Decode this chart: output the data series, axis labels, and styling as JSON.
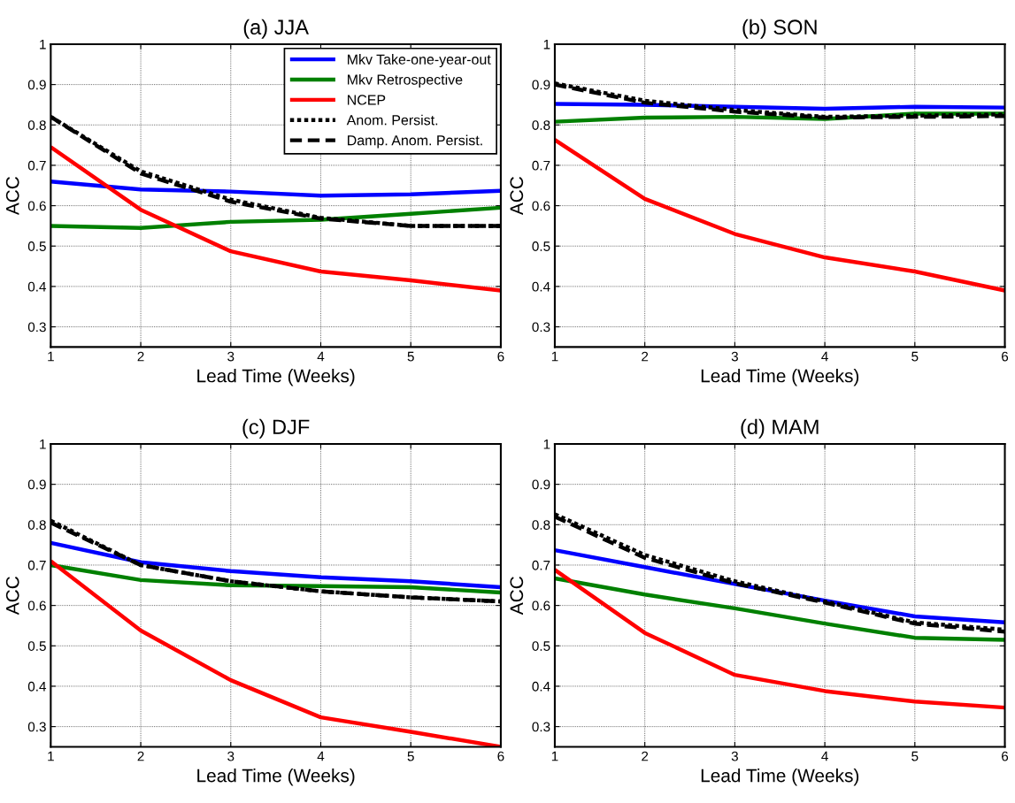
{
  "chart_data": [
    {
      "type": "line",
      "title": "(a) JJA",
      "xlabel": "Lead Time (Weeks)",
      "ylabel": "ACC",
      "x": [
        1,
        2,
        3,
        4,
        5,
        6
      ],
      "xlim": [
        1,
        6
      ],
      "xticks": [
        1,
        2,
        3,
        4,
        5,
        6
      ],
      "ylim": [
        0.25,
        1
      ],
      "yticks": [
        0.3,
        0.4,
        0.5,
        0.6,
        0.7,
        0.8,
        0.9,
        1
      ],
      "grid": true,
      "legend": "top right",
      "series": [
        {
          "name": "Mkv Take-one-year-out",
          "color": "#0000ff",
          "line_style": "solid",
          "values": [
            0.66,
            0.64,
            0.635,
            0.625,
            0.628,
            0.637
          ]
        },
        {
          "name": "Mkv Retrospective",
          "color": "#008000",
          "line_style": "solid",
          "values": [
            0.55,
            0.545,
            0.56,
            0.565,
            0.58,
            0.595
          ]
        },
        {
          "name": "NCEP",
          "color": "#ff0000",
          "line_style": "solid",
          "values": [
            0.745,
            0.59,
            0.487,
            0.437,
            0.415,
            0.39
          ]
        },
        {
          "name": "Anom. Persist.",
          "color": "#000000",
          "line_style": "dotted",
          "values": [
            0.82,
            0.685,
            0.615,
            0.57,
            0.55,
            0.55
          ]
        },
        {
          "name": "Damp. Anom. Persist.",
          "color": "#000000",
          "line_style": "dashed",
          "values": [
            0.82,
            0.68,
            0.61,
            0.568,
            0.55,
            0.55
          ]
        }
      ]
    },
    {
      "type": "line",
      "title": "(b) SON",
      "xlabel": "Lead Time (Weeks)",
      "ylabel": "ACC",
      "x": [
        1,
        2,
        3,
        4,
        5,
        6
      ],
      "xlim": [
        1,
        6
      ],
      "xticks": [
        1,
        2,
        3,
        4,
        5,
        6
      ],
      "ylim": [
        0.25,
        1
      ],
      "yticks": [
        0.3,
        0.4,
        0.5,
        0.6,
        0.7,
        0.8,
        0.9,
        1
      ],
      "grid": true,
      "series": [
        {
          "color": "#0000ff",
          "line_style": "solid",
          "values": [
            0.852,
            0.85,
            0.845,
            0.84,
            0.845,
            0.843
          ]
        },
        {
          "color": "#008000",
          "line_style": "solid",
          "values": [
            0.808,
            0.818,
            0.82,
            0.815,
            0.828,
            0.828
          ]
        },
        {
          "color": "#ff0000",
          "line_style": "solid",
          "values": [
            0.763,
            0.617,
            0.53,
            0.472,
            0.437,
            0.39
          ]
        },
        {
          "color": "#000000",
          "line_style": "dotted",
          "values": [
            0.903,
            0.86,
            0.837,
            0.82,
            0.823,
            0.826
          ]
        },
        {
          "color": "#000000",
          "line_style": "dashed",
          "values": [
            0.9,
            0.855,
            0.833,
            0.818,
            0.82,
            0.822
          ]
        }
      ]
    },
    {
      "type": "line",
      "title": "(c) DJF",
      "xlabel": "Lead Time (Weeks)",
      "ylabel": "ACC",
      "x": [
        1,
        2,
        3,
        4,
        5,
        6
      ],
      "xlim": [
        1,
        6
      ],
      "xticks": [
        1,
        2,
        3,
        4,
        5,
        6
      ],
      "ylim": [
        0.25,
        1
      ],
      "yticks": [
        0.3,
        0.4,
        0.5,
        0.6,
        0.7,
        0.8,
        0.9,
        1
      ],
      "grid": true,
      "series": [
        {
          "color": "#0000ff",
          "line_style": "solid",
          "values": [
            0.755,
            0.707,
            0.685,
            0.67,
            0.66,
            0.645
          ]
        },
        {
          "color": "#008000",
          "line_style": "solid",
          "values": [
            0.7,
            0.663,
            0.65,
            0.648,
            0.645,
            0.632
          ]
        },
        {
          "color": "#ff0000",
          "line_style": "solid",
          "values": [
            0.71,
            0.538,
            0.415,
            0.323,
            0.287,
            0.25
          ]
        },
        {
          "color": "#000000",
          "line_style": "dotted",
          "values": [
            0.81,
            0.7,
            0.66,
            0.635,
            0.62,
            0.61
          ]
        },
        {
          "color": "#000000",
          "line_style": "dashed",
          "values": [
            0.805,
            0.7,
            0.66,
            0.635,
            0.62,
            0.61
          ]
        }
      ]
    },
    {
      "type": "line",
      "title": "(d) MAM",
      "xlabel": "Lead Time (Weeks)",
      "ylabel": "ACC",
      "x": [
        1,
        2,
        3,
        4,
        5,
        6
      ],
      "xlim": [
        1,
        6
      ],
      "xticks": [
        1,
        2,
        3,
        4,
        5,
        6
      ],
      "ylim": [
        0.25,
        1
      ],
      "yticks": [
        0.3,
        0.4,
        0.5,
        0.6,
        0.7,
        0.8,
        0.9,
        1
      ],
      "grid": true,
      "series": [
        {
          "color": "#0000ff",
          "line_style": "solid",
          "values": [
            0.737,
            0.695,
            0.653,
            0.612,
            0.573,
            0.558
          ]
        },
        {
          "color": "#008000",
          "line_style": "solid",
          "values": [
            0.667,
            0.627,
            0.593,
            0.555,
            0.52,
            0.515
          ]
        },
        {
          "color": "#ff0000",
          "line_style": "solid",
          "values": [
            0.688,
            0.532,
            0.428,
            0.388,
            0.362,
            0.347
          ]
        },
        {
          "color": "#000000",
          "line_style": "dotted",
          "values": [
            0.826,
            0.725,
            0.66,
            0.61,
            0.558,
            0.54
          ]
        },
        {
          "color": "#000000",
          "line_style": "dashed",
          "values": [
            0.82,
            0.718,
            0.655,
            0.607,
            0.555,
            0.535
          ]
        }
      ]
    }
  ]
}
